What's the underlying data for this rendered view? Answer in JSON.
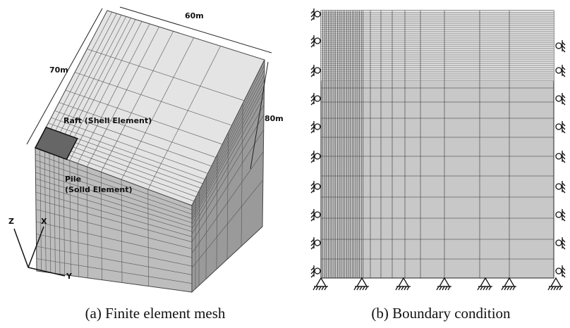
{
  "panel_a": {
    "labels": {
      "width": "60m",
      "depth": "70m",
      "height": "80m",
      "raft": "Raft (Shell Element)",
      "pile_line1": "Pile",
      "pile_line2": "(Solid Element)"
    },
    "axes": {
      "z": "Z",
      "x": "X",
      "y": "Y"
    },
    "caption": "(a) Finite element mesh"
  },
  "panel_b": {
    "caption": "(b) Boundary condition"
  }
}
